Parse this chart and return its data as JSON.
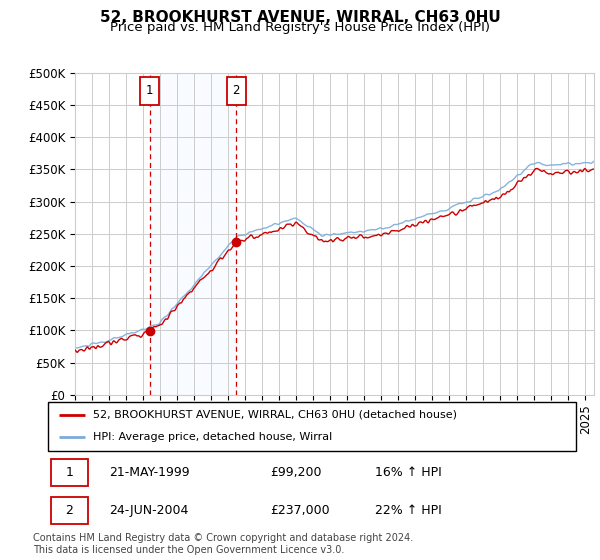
{
  "title": "52, BROOKHURST AVENUE, WIRRAL, CH63 0HU",
  "subtitle": "Price paid vs. HM Land Registry's House Price Index (HPI)",
  "ylabel_ticks": [
    "£0",
    "£50K",
    "£100K",
    "£150K",
    "£200K",
    "£250K",
    "£300K",
    "£350K",
    "£400K",
    "£450K",
    "£500K"
  ],
  "ytick_values": [
    0,
    50000,
    100000,
    150000,
    200000,
    250000,
    300000,
    350000,
    400000,
    450000,
    500000
  ],
  "ylim": [
    0,
    500000
  ],
  "xlim_start": 1995.0,
  "xlim_end": 2025.5,
  "purchase1_date": 1999.38,
  "purchase1_price": 99200,
  "purchase2_date": 2004.48,
  "purchase2_price": 237000,
  "legend_line1": "52, BROOKHURST AVENUE, WIRRAL, CH63 0HU (detached house)",
  "legend_line2": "HPI: Average price, detached house, Wirral",
  "table_row1_date": "21-MAY-1999",
  "table_row1_price": "£99,200",
  "table_row1_hpi": "16% ↑ HPI",
  "table_row2_date": "24-JUN-2004",
  "table_row2_price": "£237,000",
  "table_row2_hpi": "22% ↑ HPI",
  "footer": "Contains HM Land Registry data © Crown copyright and database right 2024.\nThis data is licensed under the Open Government Licence v3.0.",
  "hpi_color": "#7aabda",
  "price_color": "#cc0000",
  "background_shading_color": "#ddeeff",
  "vline_color": "#cc0000",
  "grid_color": "#cccccc",
  "title_fontsize": 11,
  "subtitle_fontsize": 9.5,
  "tick_fontsize": 8.5
}
